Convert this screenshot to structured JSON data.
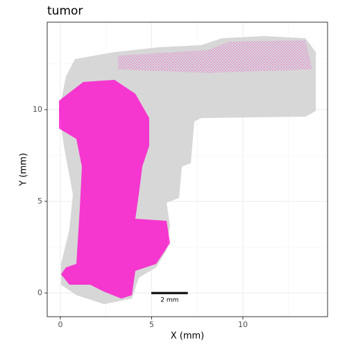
{
  "chart_data": {
    "type": "spatial",
    "title": "tumor",
    "xlabel": "X (mm)",
    "ylabel": "Y (mm)",
    "xlim": [
      -0.72,
      14.64
    ],
    "ylim": [
      -1.29,
      14.77
    ],
    "xticks": [
      0,
      5,
      10
    ],
    "yticks": [
      0,
      5,
      10
    ],
    "xminor": [
      2.5,
      7.5,
      12.5
    ],
    "yminor": [
      2.5,
      7.5,
      12.5
    ],
    "grid": true,
    "background_color": "#d3d3d3",
    "highlight_color": "#ff00cc",
    "scale_bar": {
      "label": "2 mm",
      "length": 2
    }
  }
}
